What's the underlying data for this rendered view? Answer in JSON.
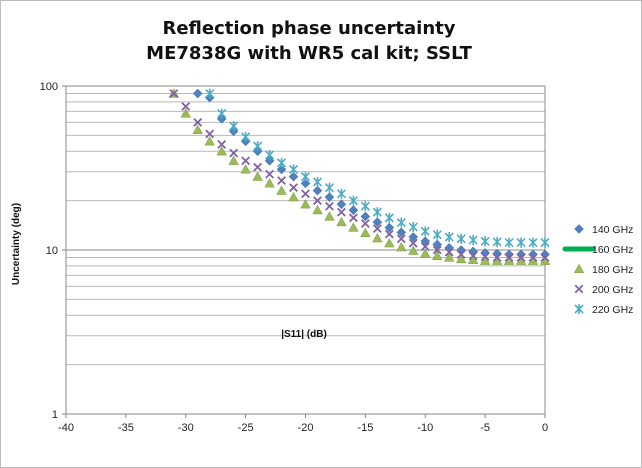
{
  "chart_data": {
    "type": "scatter",
    "title_lines": [
      "Reflection phase uncertainty",
      "ME7838G with WR5 cal kit; SSLT"
    ],
    "xlabel": "|S11| (dB)",
    "ylabel": "Uncertainty (deg)",
    "xlim": [
      -40,
      0
    ],
    "ylim": [
      1,
      100
    ],
    "yscale": "log",
    "x_ticks": [
      "-40",
      "-35",
      "-30",
      "-25",
      "-20",
      "-15",
      "-10",
      "-5",
      "0"
    ],
    "y_ticks": [
      "1",
      "10",
      "100"
    ],
    "grid": true,
    "legend_position": "right",
    "x": [
      -31,
      -30,
      -29,
      -28,
      -27,
      -26,
      -25,
      -24,
      -23,
      -22,
      -21,
      -20,
      -19,
      -18,
      -17,
      -16,
      -15,
      -14,
      -13,
      -12,
      -11,
      -10,
      -9,
      -8,
      -7,
      -6,
      -5,
      -4,
      -3,
      -2,
      -1,
      0
    ],
    "series": [
      {
        "name": "140 GHz",
        "marker": "diamond",
        "color": "#4f81bd",
        "values": [
          null,
          null,
          90,
          85,
          63,
          53,
          46,
          40,
          35,
          31,
          28,
          25.5,
          23,
          21,
          19,
          17.5,
          16,
          14.8,
          13.7,
          12.8,
          12,
          11.3,
          10.8,
          10.3,
          10,
          9.8,
          9.6,
          9.5,
          9.4,
          9.4,
          9.4,
          9.4
        ]
      },
      {
        "name": "160 GHz",
        "marker": "dash",
        "color": "#00b050",
        "values": [
          null,
          null,
          null,
          null,
          null,
          null,
          null,
          null,
          null,
          null,
          null,
          null,
          null,
          null,
          null,
          null,
          null,
          null,
          null,
          null,
          null,
          null,
          null,
          null,
          null,
          null,
          null,
          null,
          null,
          null,
          null,
          null
        ]
      },
      {
        "name": "180 GHz",
        "marker": "triangle",
        "color": "#9bbb59",
        "values": [
          90,
          68,
          54,
          46,
          40,
          35,
          31,
          28,
          25.5,
          23,
          21,
          19,
          17.5,
          16,
          14.8,
          13.7,
          12.7,
          11.8,
          11,
          10.4,
          9.9,
          9.5,
          9.2,
          9,
          8.8,
          8.7,
          8.6,
          8.6,
          8.6,
          8.6,
          8.6,
          8.6
        ]
      },
      {
        "name": "200 GHz",
        "marker": "x",
        "color": "#8064a2",
        "values": [
          90,
          75,
          60,
          51,
          44,
          39,
          35,
          32,
          29,
          26.5,
          24,
          22,
          20,
          18.5,
          17,
          15.7,
          14.5,
          13.5,
          12.5,
          11.7,
          11,
          10.5,
          10,
          9.7,
          9.4,
          9.2,
          9.1,
          9,
          9,
          9,
          9,
          9
        ]
      },
      {
        "name": "220 GHz",
        "marker": "star",
        "color": "#4bacc6",
        "values": [
          null,
          null,
          null,
          90,
          68,
          57,
          49,
          43,
          38,
          34,
          31,
          28,
          26,
          24,
          22,
          20,
          18.5,
          17,
          15.7,
          14.7,
          13.8,
          13,
          12.4,
          12,
          11.7,
          11.5,
          11.3,
          11.2,
          11.1,
          11.1,
          11.1,
          11.1
        ]
      }
    ]
  }
}
